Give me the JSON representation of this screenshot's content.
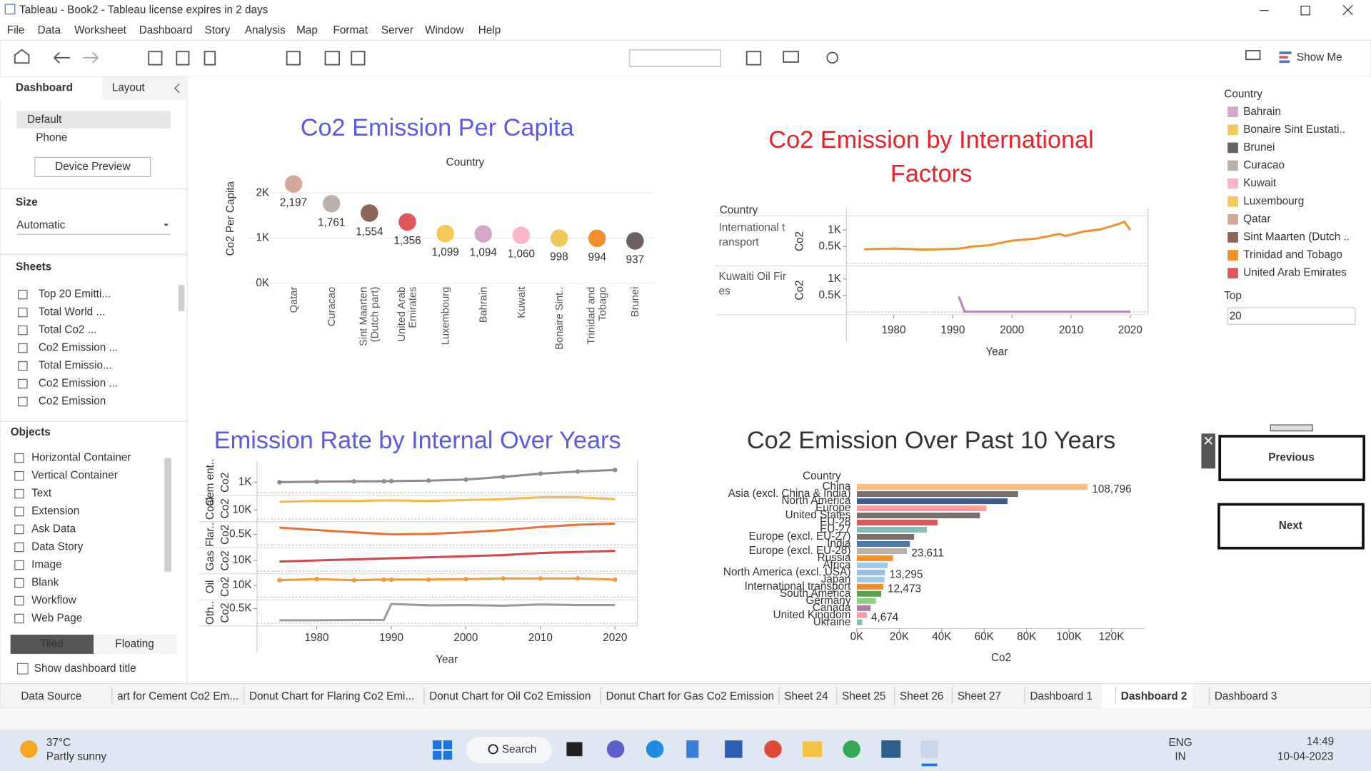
{
  "window": {
    "title": "Tableau - Book2 - Tableau license expires in 2 days"
  },
  "menu": [
    "File",
    "Data",
    "Worksheet",
    "Dashboard",
    "Story",
    "Analysis",
    "Map",
    "Format",
    "Server",
    "Window",
    "Help"
  ],
  "toolbar": {
    "show_me": "Show Me"
  },
  "side_panel": {
    "tabs": [
      "Dashboard",
      "Layout"
    ],
    "device_options": [
      "Default",
      "Phone"
    ],
    "device_preview": "Device Preview",
    "size_heading": "Size",
    "size_value": "Automatic",
    "sheets_heading": "Sheets",
    "sheets": [
      "Top 20 Emitti...",
      "Total World ...",
      "Total Co2 ...",
      "Co2 Emission ...",
      "Total Emissio...",
      "Co2 Emission ...",
      "Co2 Emission"
    ],
    "objects_heading": "Objects",
    "objects": [
      "Horizontal Container",
      "Vertical Container",
      "Text",
      "Extension",
      "Ask Data",
      "Data Story",
      "Image",
      "Blank",
      "Workflow",
      "Web Page"
    ],
    "layout_modes": [
      "Tiled",
      "Floating"
    ],
    "show_title": "Show dashboard title"
  },
  "chart_data": [
    {
      "type": "dot",
      "title": "Co2 Emission Per Capita",
      "title_color": "#5a5ae6",
      "header": "Country",
      "ylabel": "Co2 Per Capita",
      "categories": [
        "Qatar",
        "Curacao",
        "Sint Maarten (Dutch part)",
        "United Arab Emirates",
        "Luxembourg",
        "Bahrain",
        "Kuwait",
        "Bonaire Sint..",
        "Trinidad and Tobago",
        "Brunei"
      ],
      "values": [
        2197,
        1761,
        1554,
        1356,
        1099,
        1094,
        1060,
        998,
        994,
        937
      ],
      "value_labels": [
        "2,197",
        "1,761",
        "1,554",
        "1,356",
        "1,099",
        "1,094",
        "1,060",
        "998",
        "994",
        "937"
      ],
      "colors": [
        "#d4a99a",
        "#bab0ac",
        "#8c6654",
        "#e15759",
        "#f5c85a",
        "#d4a6c8",
        "#f9b6c8",
        "#f1c85a",
        "#f28e2b",
        "#6b6060"
      ],
      "ylim": [
        0,
        2400
      ],
      "yticks": [
        {
          "value": 0,
          "label": "0K"
        },
        {
          "value": 1000,
          "label": "1K"
        },
        {
          "value": 2000,
          "label": "2K"
        }
      ],
      "grid": true
    },
    {
      "type": "line",
      "title": "Co2 Emission by International Factors",
      "title_color": "#e8222a",
      "header": "Country",
      "ylabel": "Co2",
      "xlabel": "Year",
      "x": [
        1975,
        1980,
        1985,
        1988,
        1990,
        1991,
        1992,
        1993,
        1996,
        2000,
        2004,
        2008,
        2009,
        2012,
        2015,
        2018,
        2019,
        2020
      ],
      "series": [
        {
          "name": "International transport",
          "color": "#f0922e",
          "values": [
            420,
            440,
            410,
            420,
            430,
            440,
            460,
            500,
            540,
            680,
            740,
            880,
            820,
            950,
            1020,
            1180,
            1250,
            1000
          ]
        },
        {
          "name": "Kuwaiti Oil Fires",
          "color": "#c27fbf",
          "values": [
            null,
            null,
            null,
            null,
            null,
            470,
            10,
            10,
            10,
            10,
            10,
            10,
            10,
            10,
            10,
            10,
            10,
            10
          ]
        }
      ],
      "xlim": [
        1972,
        2023
      ],
      "xticks": [
        1980,
        1990,
        2000,
        2010,
        2020
      ],
      "ylim": [
        0,
        1400
      ],
      "yticks": [
        {
          "value": 500,
          "label": "0.5K"
        },
        {
          "value": 1000,
          "label": "1K"
        }
      ]
    },
    {
      "type": "line",
      "title": "Emission Rate by Internal Over Years",
      "title_color": "#5a5ae6",
      "ylabel": "Co2",
      "xlabel": "Year",
      "x": [
        1975,
        1980,
        1985,
        1989,
        1990,
        1995,
        2000,
        2005,
        2010,
        2015,
        2020
      ],
      "series": [
        {
          "name": "Cem ent..",
          "color": "#8c8c8c",
          "markers": true,
          "values": [
            1000,
            1050,
            1080,
            1090,
            1100,
            1150,
            1250,
            1500,
            1800,
            2000,
            2150
          ],
          "ylim": [
            0,
            2200
          ],
          "yticks": [
            {
              "value": 1000,
              "label": "1K"
            }
          ]
        },
        {
          "name": "Coal",
          "color": "#f5b84a",
          "values": [
            19000,
            20000,
            20000,
            20500,
            20500,
            20000,
            21000,
            22000,
            24000,
            24000,
            22000
          ],
          "ylim": [
            0,
            26000
          ],
          "yticks": [
            {
              "value": 10000,
              "label": "10K"
            }
          ]
        },
        {
          "name": "Flar..",
          "color": "#e8713a",
          "values": [
            820,
            700,
            600,
            520,
            500,
            520,
            600,
            700,
            850,
            950,
            1000
          ],
          "ylim": [
            0,
            1100
          ],
          "yticks": [
            {
              "value": 500,
              "label": "0.5K"
            }
          ]
        },
        {
          "name": "Gas",
          "color": "#d6454a",
          "values": [
            9000,
            10000,
            11000,
            11800,
            12000,
            13000,
            14000,
            15000,
            17000,
            18000,
            19000
          ],
          "ylim": [
            0,
            22000
          ],
          "yticks": [
            {
              "value": 10000,
              "label": "10K"
            }
          ]
        },
        {
          "name": "Oil",
          "color": "#f09a3e",
          "markers": true,
          "values": [
            14500,
            15500,
            14500,
            15000,
            15000,
            15000,
            15500,
            16000,
            16000,
            16000,
            15000
          ],
          "ylim": [
            0,
            20000
          ],
          "yticks": [
            {
              "value": 10000,
              "label": "10K"
            }
          ]
        },
        {
          "name": "Oth..",
          "color": "#9a9a9a",
          "values": [
            100,
            100,
            110,
            110,
            660,
            610,
            620,
            600,
            640,
            620,
            620
          ],
          "ylim": [
            0,
            800
          ],
          "yticks": [
            {
              "value": 500,
              "label": "0.5K"
            }
          ]
        }
      ],
      "xlim": [
        1972,
        2023
      ],
      "xticks": [
        1980,
        1990,
        2000,
        2010,
        2020
      ]
    },
    {
      "type": "hbar",
      "title": "Co2 Emission Over Past 10 Years",
      "title_color": "#333333",
      "header": "Country",
      "xlabel": "Co2",
      "categories": [
        "China",
        "Asia (excl. China & India)",
        "North America",
        "Europe",
        "United States",
        "EU-28",
        "EU-27",
        "Europe (excl. EU-27)",
        "India",
        "Europe (excl. EU-28)",
        "Russia",
        "Africa",
        "North America (excl. USA)",
        "Japan",
        "International transport",
        "South America",
        "Germany",
        "Canada",
        "United Kingdom",
        "Ukraine"
      ],
      "values": [
        108796,
        76000,
        71000,
        61000,
        58000,
        38000,
        33000,
        27000,
        25000,
        23611,
        17000,
        14500,
        13295,
        13000,
        12473,
        11500,
        9000,
        6500,
        4674,
        2500
      ],
      "value_labels": [
        "108,796",
        null,
        null,
        null,
        null,
        null,
        null,
        null,
        null,
        "23,611",
        null,
        null,
        "13,295",
        null,
        "12,473",
        null,
        null,
        null,
        "4,674",
        null
      ],
      "colors": [
        "#ffbe7d",
        "#79706e",
        "#3b5e8c",
        "#ff9d9a",
        "#79706e",
        "#e15759",
        "#86bcb6",
        "#79706e",
        "#4e79a7",
        "#bab0ac",
        "#f28e2b",
        "#a0cbe8",
        "#9dc0e0",
        "#a0cbe8",
        "#f28e2b",
        "#59a14f",
        "#8cd17d",
        "#b07aa1",
        "#ff9d9a",
        "#86bcb6"
      ],
      "xlim": [
        0,
        136000
      ],
      "xticks": [
        {
          "value": 0,
          "label": "0K"
        },
        {
          "value": 20000,
          "label": "20K"
        },
        {
          "value": 40000,
          "label": "40K"
        },
        {
          "value": 60000,
          "label": "60K"
        },
        {
          "value": 80000,
          "label": "80K"
        },
        {
          "value": 100000,
          "label": "100K"
        },
        {
          "value": 120000,
          "label": "120K"
        }
      ]
    }
  ],
  "legend": {
    "title": "Country",
    "items": [
      {
        "name": "Bahrain",
        "color": "#d4a6c8"
      },
      {
        "name": "Bonaire Sint Eustati..",
        "color": "#f1c85a"
      },
      {
        "name": "Brunei",
        "color": "#6b6060"
      },
      {
        "name": "Curacao",
        "color": "#bab0ac"
      },
      {
        "name": "Kuwait",
        "color": "#f9b6c8"
      },
      {
        "name": "Luxembourg",
        "color": "#f5c85a"
      },
      {
        "name": "Qatar",
        "color": "#d4a99a"
      },
      {
        "name": "Sint Maarten (Dutch ..",
        "color": "#8c6654"
      },
      {
        "name": "Trinidad and Tobago",
        "color": "#f28e2b"
      },
      {
        "name": "United Arab Emirates",
        "color": "#e15759"
      }
    ],
    "top_label": "Top",
    "top_value": "20"
  },
  "navigation": {
    "previous": "Previous",
    "next": "Next"
  },
  "sheet_tabs": [
    "Data Source",
    "art for Cement Co2 Em...",
    "Donut Chart for Flaring Co2 Emi...",
    "Donut Chart for Oil Co2 Emission",
    "Donut Chart for Gas Co2 Emission",
    "Sheet 24",
    "Sheet 25",
    "Sheet 26",
    "Sheet 27",
    "Dashboard 1",
    "Dashboard 2",
    "Dashboard 3"
  ],
  "taskbar": {
    "weather_temp": "37°C",
    "weather_desc": "Partly sunny",
    "search": "Search",
    "language": "ENG",
    "region": "IN",
    "time": "14:49",
    "date": "10-04-2023"
  }
}
